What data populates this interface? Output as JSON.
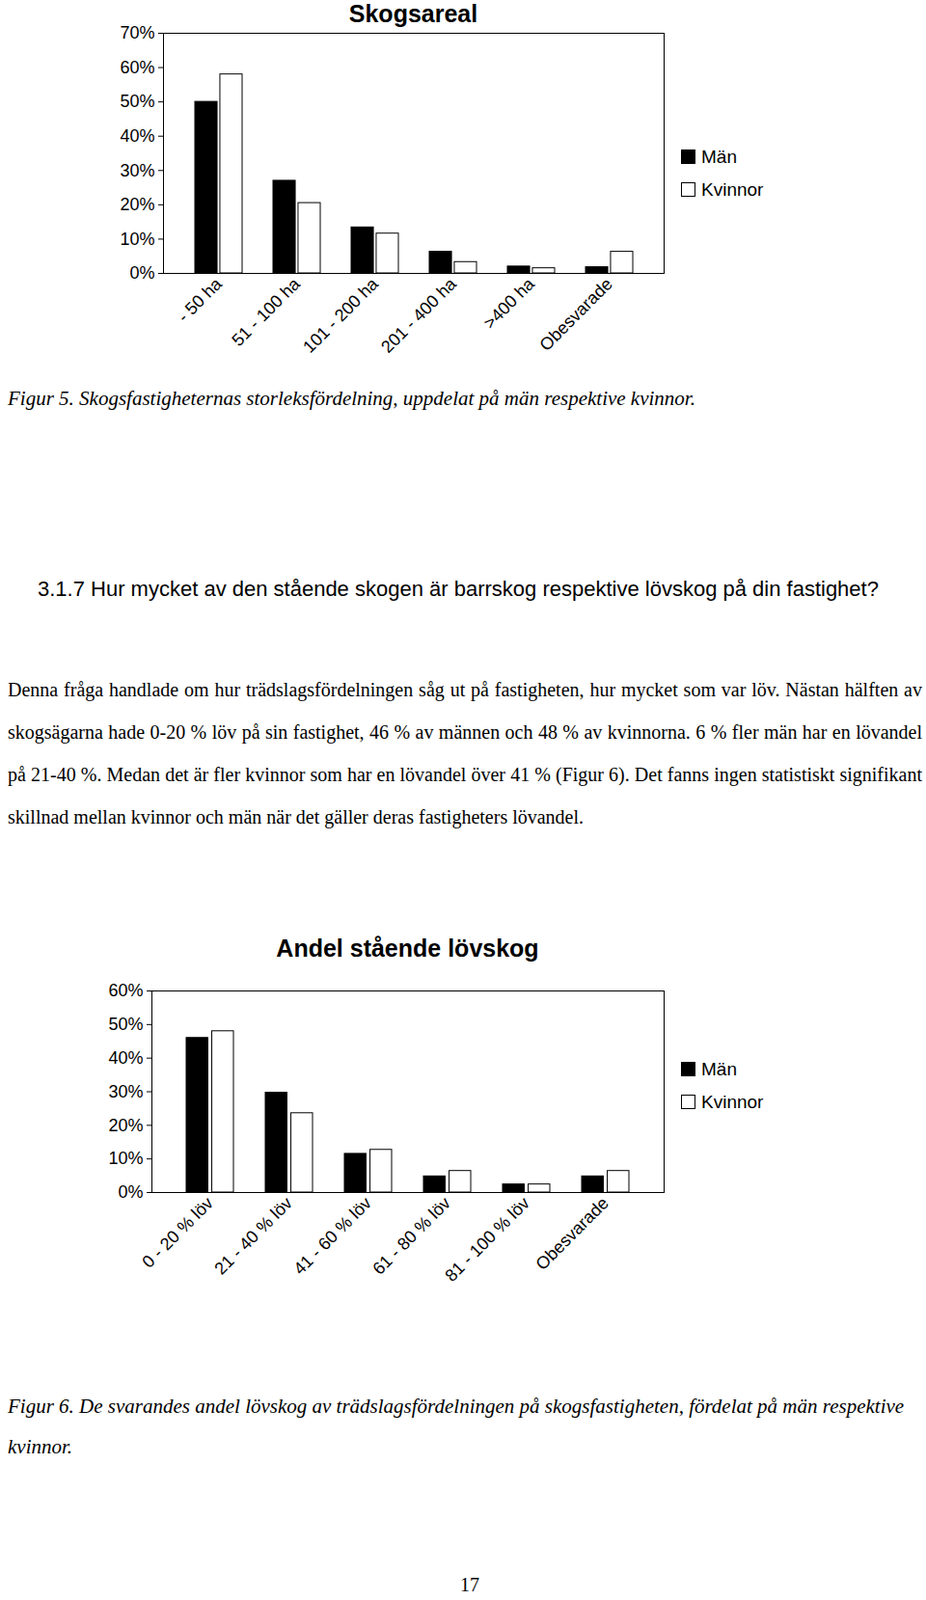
{
  "chart_data": [
    {
      "type": "bar",
      "title": "Skogsareal",
      "caption": "Figur 5. Skogsfastigheternas storleksfördelning, uppdelat på män respektive kvinnor.",
      "categories": [
        "- 50 ha",
        "51 - 100 ha",
        "101 - 200 ha",
        "201 - 400 ha",
        ">400 ha",
        "Obesvarade"
      ],
      "series": [
        {
          "name": "Män",
          "color": "#000000",
          "values": [
            50,
            27,
            13.4,
            6.3,
            2,
            1.8
          ]
        },
        {
          "name": "Kvinnor",
          "color": "#ffffff",
          "values": [
            58,
            20.5,
            11.6,
            3.3,
            1.5,
            6.3
          ]
        }
      ],
      "ylim": [
        0,
        70
      ],
      "yticks": [
        {
          "value": 0,
          "label": "0%"
        },
        {
          "value": 10,
          "label": "10%"
        },
        {
          "value": 20,
          "label": "20%"
        },
        {
          "value": 30,
          "label": "30%"
        },
        {
          "value": 40,
          "label": "40%"
        },
        {
          "value": 50,
          "label": "50%"
        },
        {
          "value": 60,
          "label": "60%"
        },
        {
          "value": 70,
          "label": "70%"
        }
      ],
      "legend": "right"
    },
    {
      "type": "bar",
      "title": "Andel stående lövskog",
      "caption": "Figur 6. De svarandes andel lövskog av trädslagsfördelningen på skogsfastigheten, fördelat på män respektive kvinnor.",
      "categories": [
        "0 - 20 % löv",
        "21 - 40 % löv",
        "41 - 60 % löv",
        "61 - 80 % löv",
        "81 - 100 % löv",
        "Obesvarade"
      ],
      "series": [
        {
          "name": "Män",
          "color": "#000000",
          "values": [
            46,
            29.7,
            11.5,
            4.8,
            2.4,
            4.8
          ]
        },
        {
          "name": "Kvinnor",
          "color": "#ffffff",
          "values": [
            48,
            23.6,
            12.7,
            6.4,
            2.4,
            6.4
          ]
        }
      ],
      "ylim": [
        0,
        60
      ],
      "yticks": [
        {
          "value": 0,
          "label": "0%"
        },
        {
          "value": 10,
          "label": "10%"
        },
        {
          "value": 20,
          "label": "20%"
        },
        {
          "value": 30,
          "label": "30%"
        },
        {
          "value": 40,
          "label": "40%"
        },
        {
          "value": 50,
          "label": "50%"
        },
        {
          "value": 60,
          "label": "60%"
        }
      ],
      "legend": "right"
    }
  ],
  "heading": "3.1.7 Hur mycket av den stående skogen är barrskog respektive lövskog på din fastighet?",
  "paragraph": "Denna fråga handlade om hur trädslagsfördelningen såg ut på fastigheten, hur mycket som var löv. Nästan hälften av skogsägarna hade 0-20 % löv på sin fastighet, 46 % av männen och 48 % av kvinnorna. 6 % fler män har en lövandel på 21-40 %. Medan det är fler kvinnor som har en lövandel över 41 % (Figur 6). Det fanns ingen statistiskt signifikant skillnad mellan kvinnor och män när det gäller deras fastigheters lövandel.",
  "page_number": "17"
}
